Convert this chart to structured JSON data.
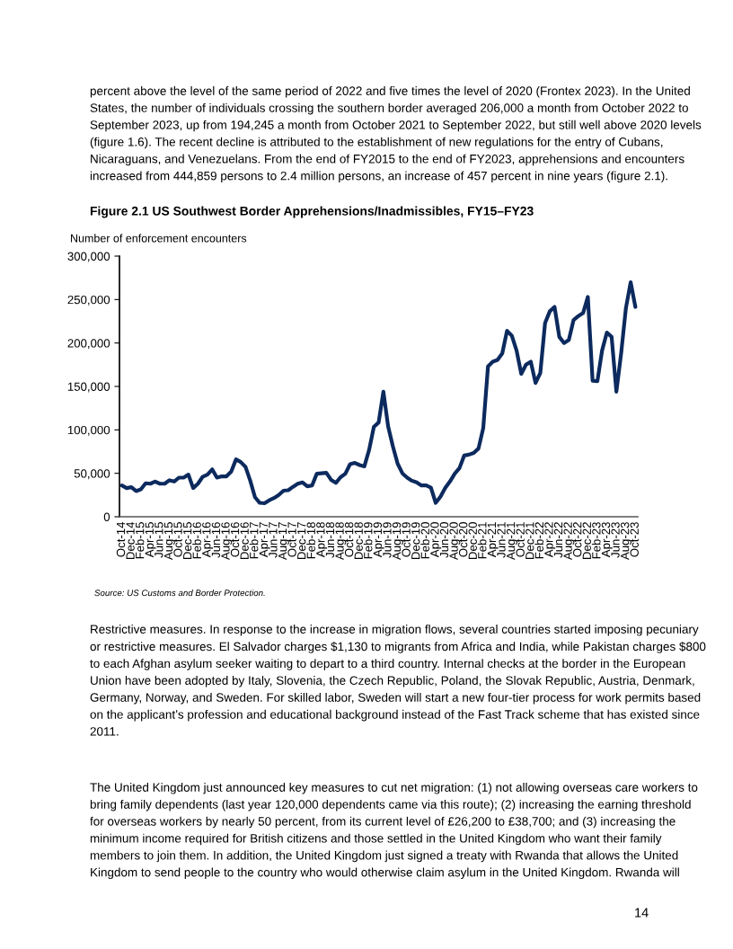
{
  "chart_data": {
    "type": "line",
    "title": "Figure 2.1 US Southwest Border Apprehensions/Inadmissibles, FY15–FY23",
    "ylabel": "Number of enforcement encounters",
    "categories": [
      "Oct-14",
      null,
      "Dec-14",
      null,
      "Feb-15",
      null,
      "Apr-15",
      null,
      "Jun-15",
      null,
      "Aug-15",
      null,
      "Oct-15",
      null,
      "Dec-15",
      null,
      "Feb-16",
      null,
      "Apr-16",
      null,
      "Jun-16",
      null,
      "Aug-16",
      null,
      "Oct-16",
      null,
      "Dec-16",
      null,
      "Feb-17",
      null,
      "Apr-17",
      null,
      "Jun-17",
      null,
      "Aug-17",
      null,
      "Oct-17",
      null,
      "Dec-17",
      null,
      "Feb-18",
      null,
      "Apr-18",
      null,
      "Jun-18",
      null,
      "Aug-18",
      null,
      "Oct-18",
      null,
      "Dec-18",
      null,
      "Feb-19",
      null,
      "Apr-19",
      null,
      "Jun-19",
      null,
      "Aug-19",
      null,
      "Oct-19",
      null,
      "Dec-19",
      null,
      "Feb-20",
      null,
      "Apr-20",
      null,
      "Jun-20",
      null,
      "Aug-20",
      null,
      "Oct-20",
      null,
      "Dec-20",
      null,
      "Feb-21",
      null,
      "Apr-21",
      null,
      "Jun-21",
      null,
      "Aug-21",
      null,
      "Oct-21",
      null,
      "Dec-21",
      null,
      "Feb-22",
      null,
      "Apr-22",
      null,
      "Jun-22",
      null,
      "Aug-22",
      null,
      "Oct-22",
      null,
      "Dec-22",
      null,
      "Feb-23",
      null,
      "Apr-23",
      null,
      "Jun-23",
      null,
      "Aug-23",
      null,
      "Oct-23"
    ],
    "series": [
      {
        "color": "#0c2a5e",
        "values": [
          36000,
          33000,
          34000,
          29500,
          31500,
          38500,
          38000,
          40500,
          38000,
          38000,
          42000,
          40500,
          45000,
          45000,
          48500,
          33000,
          38000,
          46000,
          48500,
          54500,
          45000,
          46500,
          46500,
          52000,
          66000,
          63000,
          57500,
          41500,
          22500,
          16000,
          15500,
          19000,
          21500,
          25000,
          30000,
          30500,
          34500,
          38000,
          39500,
          35000,
          36000,
          49500,
          50000,
          50500,
          42500,
          39000,
          45500,
          49500,
          60500,
          62000,
          59500,
          58000,
          77000,
          103500,
          108500,
          144000,
          104000,
          81000,
          61000,
          50000,
          45000,
          41500,
          39500,
          36000,
          36000,
          33500,
          16000,
          23000,
          33000,
          40500,
          49500,
          56000,
          70500,
          71500,
          73500,
          78500,
          102000,
          173000,
          178500,
          180500,
          188000,
          214000,
          208500,
          191500,
          164500,
          175000,
          178500,
          154000,
          165500,
          223000,
          236500,
          241500,
          207000,
          200000,
          203500,
          226500,
          231000,
          234500,
          253000,
          156500,
          156000,
          191500,
          212000,
          207000,
          144000,
          188000,
          240000,
          270000,
          241500
        ]
      }
    ],
    "ylim": [
      0,
      300000
    ],
    "yticks": [
      {
        "value": 0,
        "label": "0"
      },
      {
        "value": 50000,
        "label": "50,000"
      },
      {
        "value": 100000,
        "label": "100,000"
      },
      {
        "value": 150000,
        "label": "150,000"
      },
      {
        "value": 200000,
        "label": "200,000"
      },
      {
        "value": 250000,
        "label": "250,000"
      },
      {
        "value": 300000,
        "label": "300,000"
      }
    ],
    "grid": false,
    "legend": false,
    "marker": "none",
    "line_style": "solid",
    "annotations": [
      "percent above the level of the same period of 2022 and five times the level of 2020 (Frontex 2023). In the United\nStates, the number of individuals crossing the southern border averaged 206,000 a month from October 2022 to\nSeptember 2023, up from 194,245 a month from October 2021 to September 2022, but still well above 2020 levels\n(figure 1.6). The recent decline is attributed to the establishment of new regulations for the entry of Cubans,\nNicaraguans, and Venezuelans. From the end of FY2015 to the end of FY2023, apprehensions and encounters\nincreased from 444,859 persons to 2.4 million persons, an increase of 457 percent in nine years (figure 2.1).",
      "Source: US Customs and Border Protection.",
      "Restrictive measures. In response to the increase in migration flows, several countries started imposing pecuniary\nor restrictive measures. El Salvador charges $1,130 to migrants from Africa and India, while Pakistan charges $800\nto each Afghan asylum seeker waiting to depart to a third country. Internal checks at the border in the European\nUnion have been adopted by Italy, Slovenia, the Czech Republic, Poland, the Slovak Republic, Austria, Denmark,\nGermany, Norway, and Sweden. For skilled labor, Sweden will start a new four-tier process for work permits based\non the applicant’s profession and educational background instead of the Fast Track scheme that has existed since\n2011.",
      "The United Kingdom just announced key measures to cut net migration: (1) not allowing overseas care workers to\nbring family dependents (last year 120,000 dependents came via this route); (2) increasing the earning threshold\nfor overseas workers by nearly 50 percent, from its current level of £26,200 to £38,700; and (3) increasing the\nminimum income required for British citizens and those settled in the United Kingdom who want their family\nmembers to join them. In addition, the United Kingdom just signed a treaty with Rwanda that allows the United\nKingdom to send people to the country who would otherwise claim asylum in the United Kingdom. Rwanda will",
      "14"
    ]
  }
}
